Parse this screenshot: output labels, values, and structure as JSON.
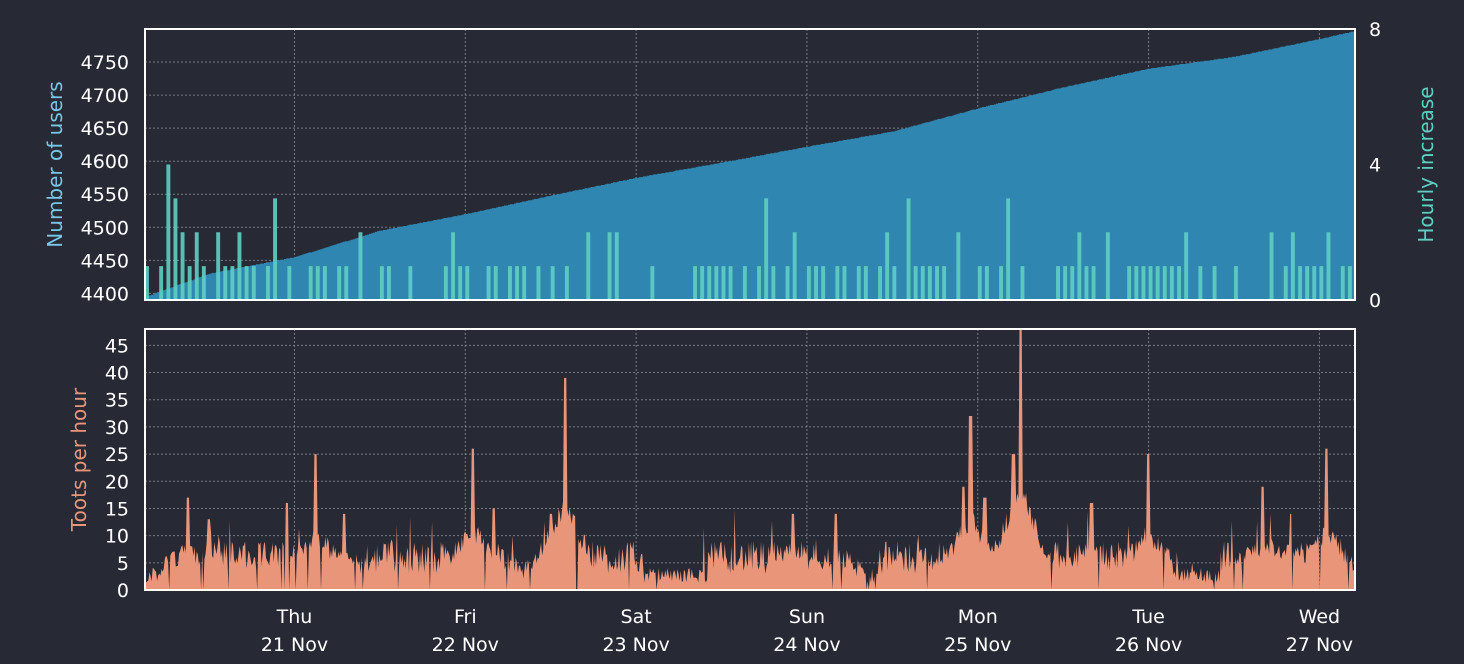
{
  "colors": {
    "background": "#272a35",
    "frame": "#ffffff",
    "grid": "#9a9ca6",
    "users_area": "#2e86b1",
    "hourly_bars": "#5fcfc3",
    "toots_area": "#e8957a",
    "users_label": "#79c6e6",
    "hourly_label": "#5fcfc3",
    "toots_label": "#e8957a",
    "tick_text": "#ffffff"
  },
  "chart_data": [
    {
      "type": "area",
      "panel": "top",
      "ylabel": "Number of users",
      "ylabel_right": "Hourly increase",
      "ylim": [
        4390,
        4800
      ],
      "y_ticks": [
        4400,
        4450,
        4500,
        4550,
        4600,
        4650,
        4700,
        4750
      ],
      "ylim_right": [
        0,
        8
      ],
      "y_ticks_right": [
        0,
        4,
        8
      ],
      "grid": true,
      "x_range": [
        "2019-11-20 03:00",
        "2019-11-27 05:00"
      ],
      "series": [
        {
          "kind": "area",
          "axis": "left",
          "x": [
            "2019-11-20 03:00",
            "2019-11-20 12:00",
            "2019-11-21 00:00",
            "2019-11-21 12:00",
            "2019-11-22 00:00",
            "2019-11-22 12:00",
            "2019-11-23 00:00",
            "2019-11-23 12:00",
            "2019-11-24 00:00",
            "2019-11-24 12:00",
            "2019-11-25 00:00",
            "2019-11-25 12:00",
            "2019-11-26 00:00",
            "2019-11-26 12:00",
            "2019-11-27 00:00",
            "2019-11-27 05:00"
          ],
          "values": [
            4395,
            4430,
            4455,
            4495,
            4520,
            4548,
            4575,
            4598,
            4622,
            4645,
            4680,
            4712,
            4740,
            4758,
            4785,
            4797
          ]
        },
        {
          "kind": "bars",
          "axis": "right",
          "description_values": "hourly new users, mostly 0-1 with spikes",
          "x": [
            "2019-11-20 06:00",
            "2019-11-20 07:00",
            "2019-11-20 10:00",
            "2019-11-20 13:00",
            "2019-11-20 16:00",
            "2019-11-20 21:00",
            "2019-11-21 09:00",
            "2019-11-22 17:00",
            "2019-11-22 21:00",
            "2019-11-23 18:00",
            "2019-11-24 14:00",
            "2019-11-25 04:00",
            "2019-11-25 18:00",
            "2019-11-26 05:00",
            "2019-11-26 17:00",
            "2019-11-27 01:00"
          ],
          "values": [
            4,
            3,
            2,
            2,
            2,
            3,
            2,
            2,
            2,
            3,
            3,
            3,
            2,
            2,
            2,
            2
          ]
        }
      ],
      "x_tick_labels": [
        {
          "day": "Thu",
          "date": "21 Nov"
        },
        {
          "day": "Fri",
          "date": "22 Nov"
        },
        {
          "day": "Sat",
          "date": "23 Nov"
        },
        {
          "day": "Sun",
          "date": "24 Nov"
        },
        {
          "day": "Mon",
          "date": "25 Nov"
        },
        {
          "day": "Tue",
          "date": "26 Nov"
        },
        {
          "day": "Wed",
          "date": "27 Nov"
        }
      ]
    },
    {
      "type": "area",
      "panel": "bottom",
      "ylabel": "Toots per hour",
      "ylim": [
        0,
        48
      ],
      "y_ticks": [
        0,
        5,
        10,
        15,
        20,
        25,
        30,
        35,
        40,
        45
      ],
      "grid": true,
      "x_range": [
        "2019-11-20 03:00",
        "2019-11-27 05:00"
      ],
      "baseline": 3,
      "peaks": [
        {
          "x": "2019-11-20 09:00",
          "value": 17
        },
        {
          "x": "2019-11-20 12:00",
          "value": 13
        },
        {
          "x": "2019-11-20 23:00",
          "value": 16
        },
        {
          "x": "2019-11-21 03:00",
          "value": 25
        },
        {
          "x": "2019-11-21 07:00",
          "value": 14
        },
        {
          "x": "2019-11-22 01:00",
          "value": 26
        },
        {
          "x": "2019-11-22 04:00",
          "value": 15
        },
        {
          "x": "2019-11-22 12:00",
          "value": 14
        },
        {
          "x": "2019-11-22 14:00",
          "value": 39
        },
        {
          "x": "2019-11-23 22:00",
          "value": 14
        },
        {
          "x": "2019-11-24 04:00",
          "value": 14
        },
        {
          "x": "2019-11-24 22:00",
          "value": 19
        },
        {
          "x": "2019-11-25 01:00",
          "value": 17
        },
        {
          "x": "2019-11-24 23:00",
          "value": 32
        },
        {
          "x": "2019-11-25 05:00",
          "value": 25
        },
        {
          "x": "2019-11-25 06:00",
          "value": 48
        },
        {
          "x": "2019-11-25 16:00",
          "value": 16
        },
        {
          "x": "2019-11-26 00:00",
          "value": 25
        },
        {
          "x": "2019-11-26 16:00",
          "value": 19
        },
        {
          "x": "2019-11-26 20:00",
          "value": 14
        },
        {
          "x": "2019-11-27 01:00",
          "value": 26
        }
      ],
      "x_tick_labels": [
        {
          "day": "Thu",
          "date": "21 Nov"
        },
        {
          "day": "Fri",
          "date": "22 Nov"
        },
        {
          "day": "Sat",
          "date": "23 Nov"
        },
        {
          "day": "Sun",
          "date": "24 Nov"
        },
        {
          "day": "Mon",
          "date": "25 Nov"
        },
        {
          "day": "Tue",
          "date": "26 Nov"
        },
        {
          "day": "Wed",
          "date": "27 Nov"
        }
      ]
    }
  ]
}
